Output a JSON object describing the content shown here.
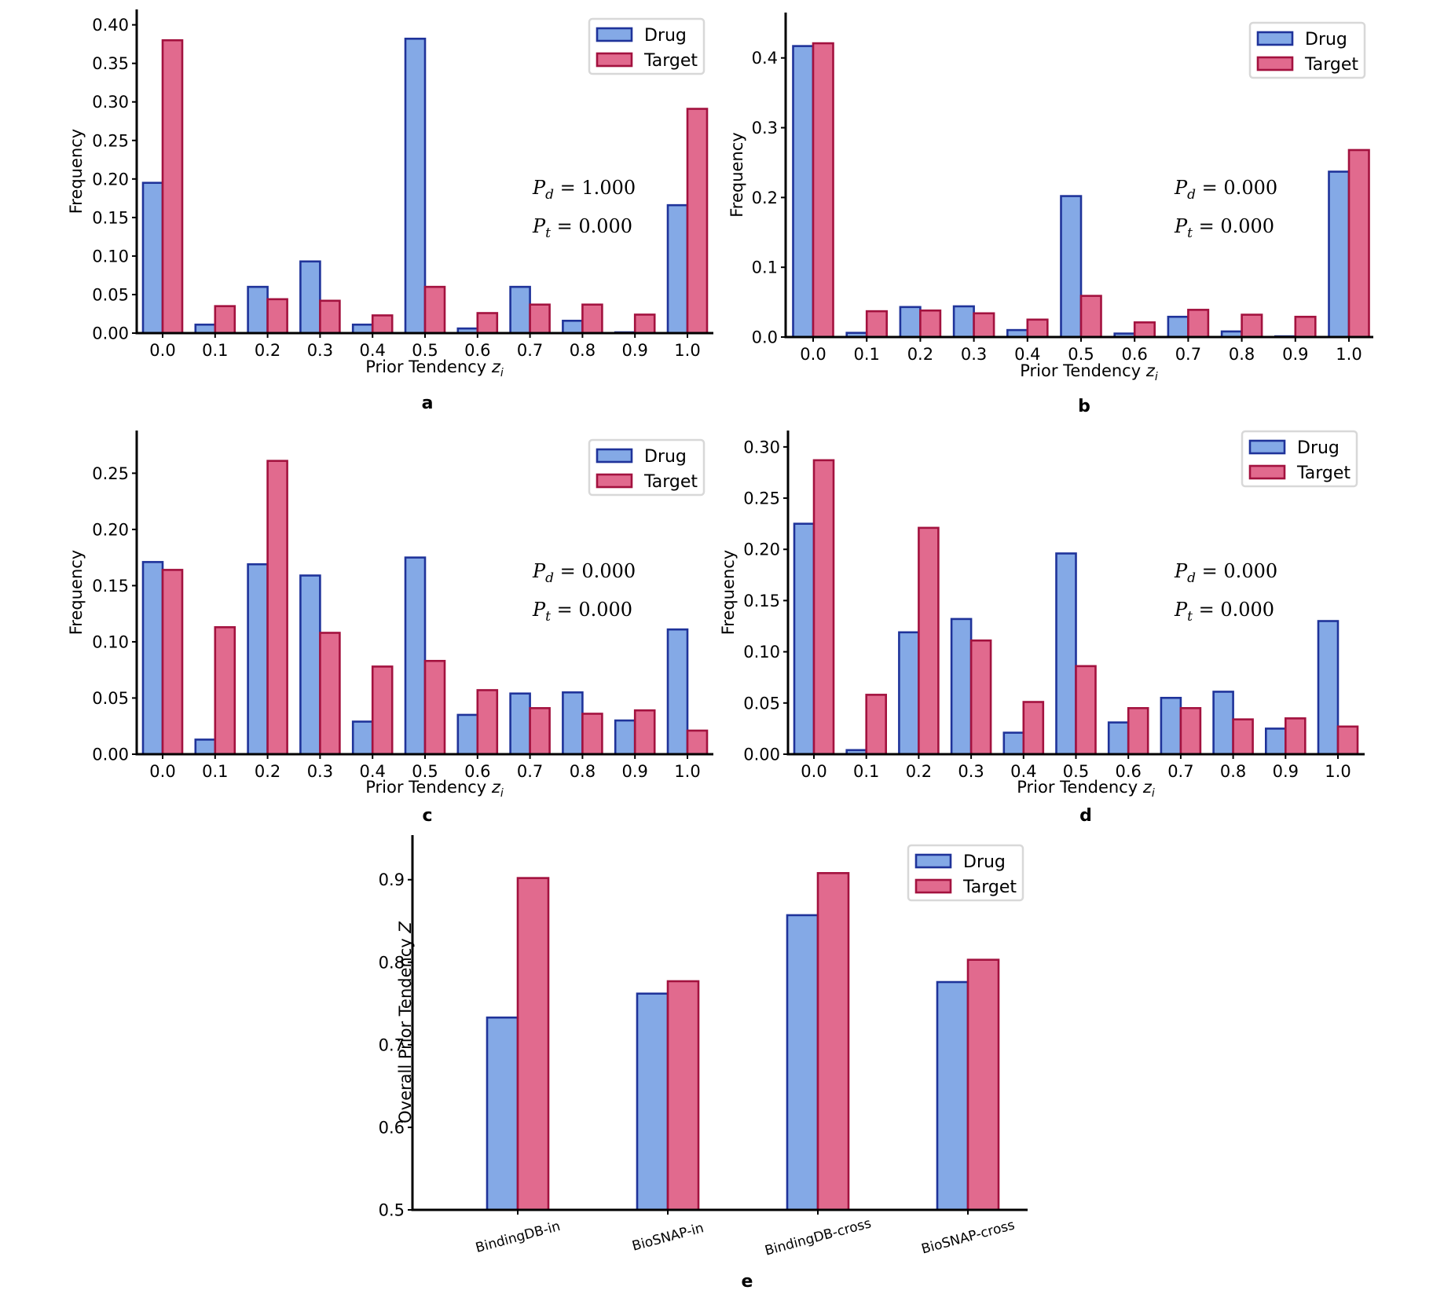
{
  "colors": {
    "drug_fill": "#84a9e6",
    "drug_edge": "#1f339a",
    "target_fill": "#e16a8e",
    "target_edge": "#a3123f",
    "legend_border": "#d8d8d8"
  },
  "chart_data": [
    {
      "panel": "a",
      "type": "bar",
      "title": "",
      "xlabel": "Prior Tendency z_i",
      "xlabel_main": "Prior Tendency ",
      "xlabel_var": "z",
      "xlabel_sub": "i",
      "ylabel": "Frequency",
      "categories": [
        "0.0",
        "0.1",
        "0.2",
        "0.3",
        "0.4",
        "0.5",
        "0.6",
        "0.7",
        "0.8",
        "0.9",
        "1.0"
      ],
      "yticks": [
        "0.00",
        "0.05",
        "0.10",
        "0.15",
        "0.20",
        "0.25",
        "0.30",
        "0.35",
        "0.40"
      ],
      "ylim": [
        0,
        0.42
      ],
      "series": [
        {
          "name": "Drug",
          "values": [
            0.195,
            0.011,
            0.06,
            0.093,
            0.011,
            0.382,
            0.006,
            0.06,
            0.016,
            0.001,
            0.166
          ]
        },
        {
          "name": "Target",
          "values": [
            0.38,
            0.035,
            0.044,
            0.042,
            0.023,
            0.06,
            0.026,
            0.037,
            0.037,
            0.024,
            0.291
          ]
        }
      ],
      "legend": {
        "position": "top-right",
        "entries": [
          "Drug",
          "Target"
        ]
      },
      "annotations": [
        {
          "symbol": "P",
          "sub": "d",
          "text": " = 1.000"
        },
        {
          "symbol": "P",
          "sub": "t",
          "text": " = 0.000"
        }
      ],
      "grid": false
    },
    {
      "panel": "b",
      "type": "bar",
      "title": "",
      "xlabel": "Prior Tendency z_i",
      "xlabel_main": "Prior Tendency ",
      "xlabel_var": "z",
      "xlabel_sub": "i",
      "ylabel": "Frequency",
      "categories": [
        "0.0",
        "0.1",
        "0.2",
        "0.3",
        "0.4",
        "0.5",
        "0.6",
        "0.7",
        "0.8",
        "0.9",
        "1.0"
      ],
      "yticks": [
        "0.0",
        "0.1",
        "0.2",
        "0.3",
        "0.4"
      ],
      "ylim": [
        0,
        0.465
      ],
      "series": [
        {
          "name": "Drug",
          "values": [
            0.417,
            0.006,
            0.043,
            0.044,
            0.01,
            0.202,
            0.005,
            0.029,
            0.008,
            0.001,
            0.237
          ]
        },
        {
          "name": "Target",
          "values": [
            0.421,
            0.037,
            0.038,
            0.034,
            0.025,
            0.059,
            0.021,
            0.039,
            0.032,
            0.029,
            0.268
          ]
        }
      ],
      "legend": {
        "position": "top-right",
        "entries": [
          "Drug",
          "Target"
        ]
      },
      "annotations": [
        {
          "symbol": "P",
          "sub": "d",
          "text": " = 0.000"
        },
        {
          "symbol": "P",
          "sub": "t",
          "text": " = 0.000"
        }
      ],
      "grid": false
    },
    {
      "panel": "c",
      "type": "bar",
      "title": "",
      "xlabel": "Prior Tendency z_i",
      "xlabel_main": "Prior Tendency ",
      "xlabel_var": "z",
      "xlabel_sub": "i",
      "ylabel": "Frequency",
      "categories": [
        "0.0",
        "0.1",
        "0.2",
        "0.3",
        "0.4",
        "0.5",
        "0.6",
        "0.7",
        "0.8",
        "0.9",
        "1.0"
      ],
      "yticks": [
        "0.00",
        "0.05",
        "0.10",
        "0.15",
        "0.20",
        "0.25"
      ],
      "ylim": [
        0,
        0.288
      ],
      "series": [
        {
          "name": "Drug",
          "values": [
            0.171,
            0.013,
            0.169,
            0.159,
            0.029,
            0.175,
            0.035,
            0.054,
            0.055,
            0.03,
            0.111
          ]
        },
        {
          "name": "Target",
          "values": [
            0.164,
            0.113,
            0.261,
            0.108,
            0.078,
            0.083,
            0.057,
            0.041,
            0.036,
            0.039,
            0.021
          ]
        }
      ],
      "legend": {
        "position": "top-right",
        "entries": [
          "Drug",
          "Target"
        ]
      },
      "annotations": [
        {
          "symbol": "P",
          "sub": "d",
          "text": " = 0.000"
        },
        {
          "symbol": "P",
          "sub": "t",
          "text": " = 0.000"
        }
      ],
      "grid": false
    },
    {
      "panel": "d",
      "type": "bar",
      "title": "",
      "xlabel": "Prior Tendency z_i",
      "xlabel_main": "Prior Tendency ",
      "xlabel_var": "z",
      "xlabel_sub": "i",
      "ylabel": "Frequency",
      "categories": [
        "0.0",
        "0.1",
        "0.2",
        "0.3",
        "0.4",
        "0.5",
        "0.6",
        "0.7",
        "0.8",
        "0.9",
        "1.0"
      ],
      "yticks": [
        "0.00",
        "0.05",
        "0.10",
        "0.15",
        "0.20",
        "0.25",
        "0.30"
      ],
      "ylim": [
        0,
        0.316
      ],
      "series": [
        {
          "name": "Drug",
          "values": [
            0.225,
            0.004,
            0.119,
            0.132,
            0.021,
            0.196,
            0.031,
            0.055,
            0.061,
            0.025,
            0.13
          ]
        },
        {
          "name": "Target",
          "values": [
            0.287,
            0.058,
            0.221,
            0.111,
            0.051,
            0.086,
            0.045,
            0.045,
            0.034,
            0.035,
            0.027
          ]
        }
      ],
      "legend": {
        "position": "top-right",
        "entries": [
          "Drug",
          "Target"
        ]
      },
      "annotations": [
        {
          "symbol": "P",
          "sub": "d",
          "text": " = 0.000"
        },
        {
          "symbol": "P",
          "sub": "t",
          "text": " = 0.000"
        }
      ],
      "grid": false
    },
    {
      "panel": "e",
      "type": "bar",
      "title": "",
      "xlabel": "",
      "ylabel": "Overall Prior Tendency Z",
      "ylabel_main": "Overall Prior Tendency ",
      "ylabel_var": "Z",
      "categories": [
        "BindingDB-in",
        "BioSNAP-in",
        "BindingDB-cross",
        "BioSNAP-cross"
      ],
      "yticks": [
        "0.5",
        "0.6",
        "0.7",
        "0.8",
        "0.9"
      ],
      "ylim": [
        0.5,
        0.954
      ],
      "series": [
        {
          "name": "Drug",
          "values": [
            0.733,
            0.762,
            0.857,
            0.776
          ]
        },
        {
          "name": "Target",
          "values": [
            0.902,
            0.777,
            0.908,
            0.803
          ]
        }
      ],
      "legend": {
        "position": "top-right",
        "entries": [
          "Drug",
          "Target"
        ]
      },
      "grid": false
    }
  ]
}
